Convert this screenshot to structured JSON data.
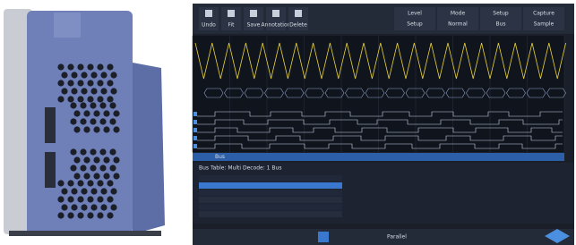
{
  "toolbar": {
    "buttons": [
      "Undo",
      "Fit",
      "Save",
      "Annotation",
      "Delete"
    ]
  },
  "trigger_menu": {
    "headers": [
      "Level",
      "Mode",
      "Setup",
      "Capture"
    ],
    "values": [
      "Setup",
      "Normal",
      "Bus",
      "Sample"
    ]
  },
  "bus_label": "Bus",
  "table": {
    "title": "Bus Table: Multi Decode: 1 Bus"
  },
  "bottom_bar": {
    "protocol": "Parallel"
  }
}
